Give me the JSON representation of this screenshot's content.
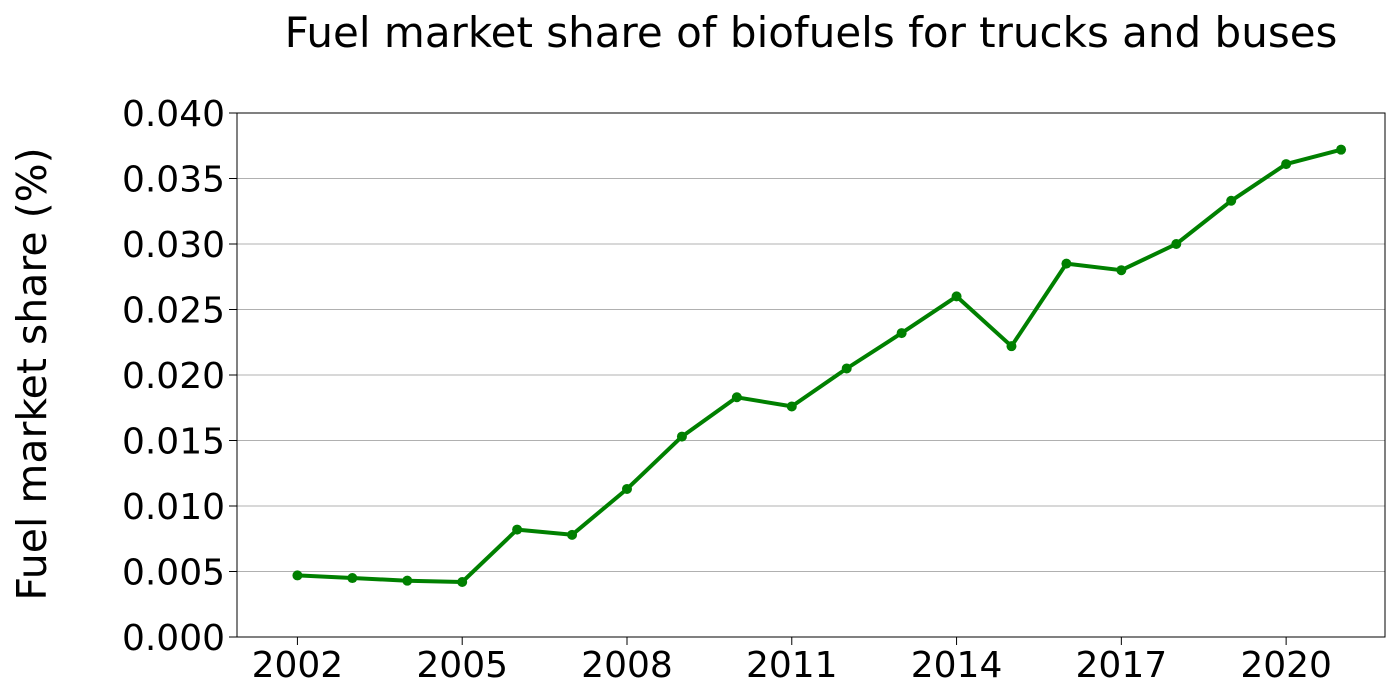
{
  "chart_data": {
    "type": "line",
    "title": "Fuel market share of biofuels for trucks and buses",
    "xlabel": "",
    "ylabel": "Fuel market share (%)",
    "xlim": [
      2000.9,
      2021.8
    ],
    "ylim": [
      0,
      0.04
    ],
    "x_ticks": [
      2002,
      2005,
      2008,
      2011,
      2014,
      2017,
      2020
    ],
    "y_ticks": [
      "0.000",
      "0.005",
      "0.010",
      "0.015",
      "0.020",
      "0.025",
      "0.030",
      "0.035",
      "0.040"
    ],
    "grid": "horizontal",
    "color": "#008000",
    "series": [
      {
        "x": [
          2002,
          2003,
          2004,
          2005,
          2006,
          2007,
          2008,
          2009,
          2010,
          2011,
          2012,
          2013,
          2014,
          2015,
          2016,
          2017,
          2018,
          2019,
          2020,
          2021
        ],
        "values": [
          0.0047,
          0.0045,
          0.0043,
          0.0042,
          0.0082,
          0.0078,
          0.0113,
          0.0153,
          0.0183,
          0.0176,
          0.0205,
          0.0232,
          0.026,
          0.0222,
          0.0285,
          0.028,
          0.03,
          0.0333,
          0.0361,
          0.0372
        ]
      }
    ]
  }
}
